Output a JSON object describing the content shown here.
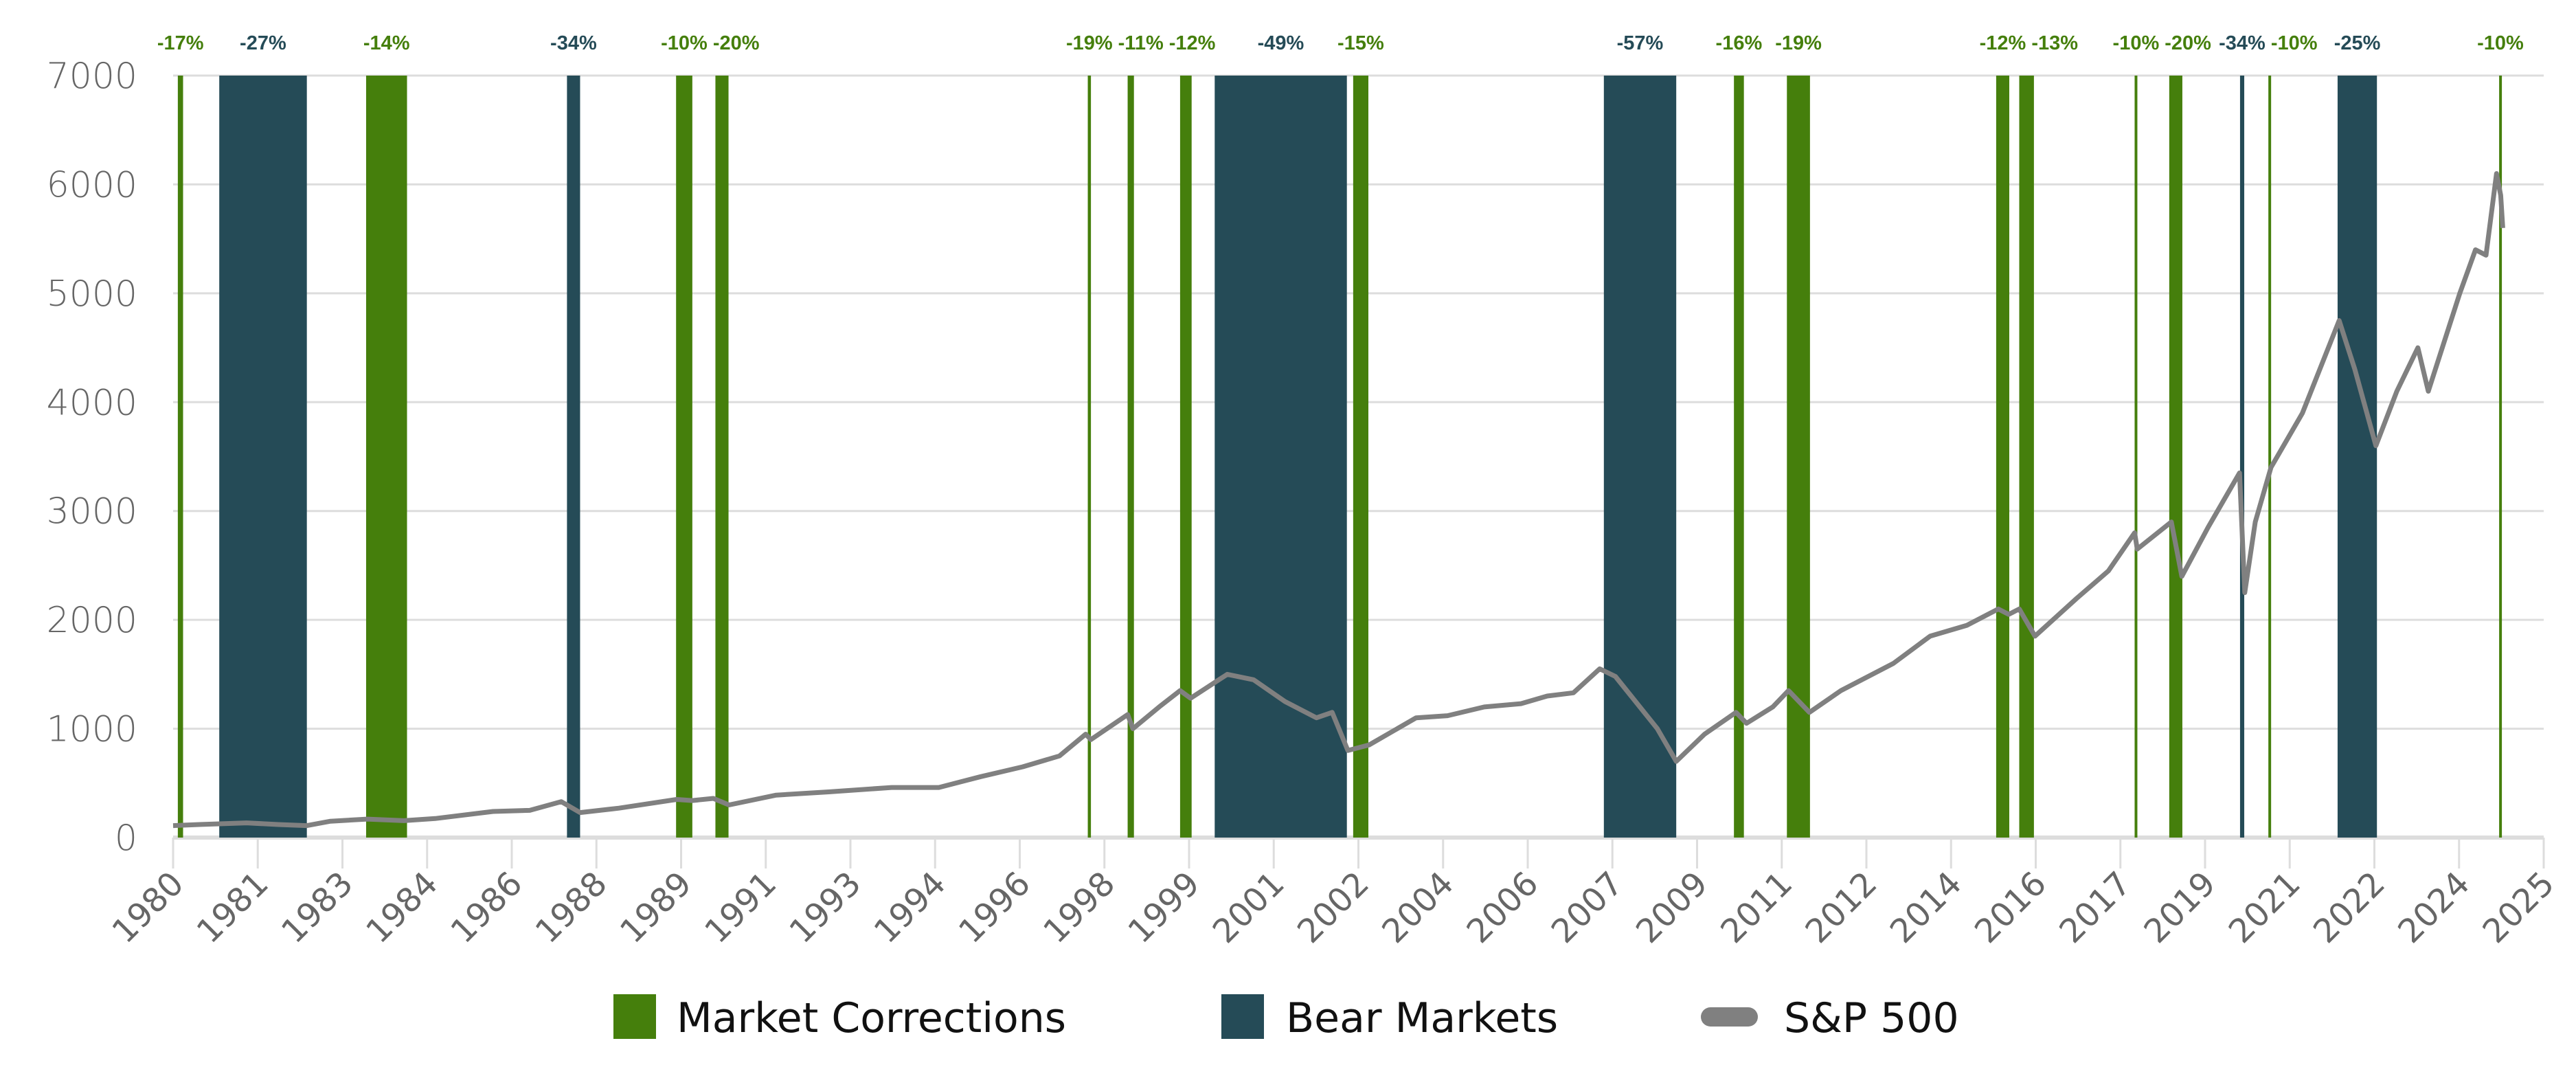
{
  "chart_data": {
    "type": "line",
    "title": "",
    "xlabel": "",
    "ylabel": "",
    "xlim": [
      1980,
      2025.2
    ],
    "ylim": [
      0,
      7000
    ],
    "grid": "horizontal",
    "legend_placement": "bottom",
    "y_ticks": [
      "0",
      "1000",
      "2000",
      "3000",
      "4000",
      "5000",
      "6000",
      "7000"
    ],
    "x_ticks": [
      "1980",
      "1981",
      "1983",
      "1984",
      "1986",
      "1988",
      "1989",
      "1991",
      "1993",
      "1994",
      "1996",
      "1998",
      "1999",
      "2001",
      "2002",
      "2004",
      "2006",
      "2007",
      "2009",
      "2011",
      "2012",
      "2014",
      "2016",
      "2017",
      "2019",
      "2021",
      "2022",
      "2024",
      "2025"
    ],
    "colors": {
      "correction": "#457f0c",
      "bear": "#254b57",
      "line": "#808080",
      "grid": "#dddddd"
    },
    "legend": [
      {
        "key": "correction",
        "label": "Market Corrections"
      },
      {
        "key": "bear",
        "label": "Bear Markets"
      },
      {
        "key": "line",
        "label": "S&P 500"
      }
    ],
    "events": [
      {
        "type": "correction",
        "start": 1980.09,
        "end": 1980.19,
        "label": "-17%"
      },
      {
        "type": "bear",
        "start": 1980.88,
        "end": 1982.55,
        "label": "-27%"
      },
      {
        "type": "correction",
        "start": 1983.68,
        "end": 1984.46,
        "label": "-14%"
      },
      {
        "type": "bear",
        "start": 1987.51,
        "end": 1987.76,
        "label": "-34%"
      },
      {
        "type": "correction",
        "start": 1989.59,
        "end": 1989.9,
        "label": "-10%"
      },
      {
        "type": "correction",
        "start": 1990.34,
        "end": 1990.59,
        "label": "-20%"
      },
      {
        "type": "correction",
        "start": 1997.44,
        "end": 1997.5,
        "label": "-19%"
      },
      {
        "type": "correction",
        "start": 1998.2,
        "end": 1998.32,
        "label": "-11%"
      },
      {
        "type": "correction",
        "start": 1999.2,
        "end": 1999.42,
        "label": "-12%"
      },
      {
        "type": "bear",
        "start": 1999.86,
        "end": 2002.38,
        "label": "-49%"
      },
      {
        "type": "correction",
        "start": 2002.5,
        "end": 2002.79,
        "label": "-15%"
      },
      {
        "type": "bear",
        "start": 2007.28,
        "end": 2008.66,
        "label": "-57%"
      },
      {
        "type": "correction",
        "start": 2009.76,
        "end": 2009.95,
        "label": "-16%"
      },
      {
        "type": "correction",
        "start": 2010.77,
        "end": 2011.21,
        "label": "-19%"
      },
      {
        "type": "correction",
        "start": 2014.76,
        "end": 2015.01,
        "label": "-12%"
      },
      {
        "type": "correction",
        "start": 2015.2,
        "end": 2015.48,
        "label": "-13%"
      },
      {
        "type": "correction",
        "start": 2017.4,
        "end": 2017.45,
        "label": "-10%"
      },
      {
        "type": "correction",
        "start": 2018.06,
        "end": 2018.31,
        "label": "-20%"
      },
      {
        "type": "bear",
        "start": 2019.41,
        "end": 2019.49,
        "label": "-34%"
      },
      {
        "type": "correction",
        "start": 2019.95,
        "end": 2020.0,
        "label": "-10%"
      },
      {
        "type": "bear",
        "start": 2021.27,
        "end": 2022.02,
        "label": "-25%"
      },
      {
        "type": "correction",
        "start": 2024.35,
        "end": 2024.4,
        "label": "-10%"
      }
    ],
    "series": [
      {
        "name": "S&P 500",
        "points": [
          [
            1980.0,
            110
          ],
          [
            1980.5,
            120
          ],
          [
            1981.4,
            135
          ],
          [
            1982.0,
            120
          ],
          [
            1982.55,
            110
          ],
          [
            1983.0,
            150
          ],
          [
            1983.7,
            170
          ],
          [
            1984.4,
            155
          ],
          [
            1985.0,
            175
          ],
          [
            1986.1,
            240
          ],
          [
            1986.8,
            250
          ],
          [
            1987.4,
            330
          ],
          [
            1987.76,
            230
          ],
          [
            1988.5,
            270
          ],
          [
            1989.6,
            350
          ],
          [
            1989.9,
            340
          ],
          [
            1990.3,
            360
          ],
          [
            1990.6,
            300
          ],
          [
            1991.5,
            390
          ],
          [
            1992.5,
            420
          ],
          [
            1993.7,
            460
          ],
          [
            1994.6,
            460
          ],
          [
            1995.4,
            560
          ],
          [
            1996.2,
            650
          ],
          [
            1996.9,
            750
          ],
          [
            1997.4,
            950
          ],
          [
            1997.5,
            900
          ],
          [
            1998.2,
            1130
          ],
          [
            1998.3,
            1000
          ],
          [
            1998.8,
            1200
          ],
          [
            1999.2,
            1350
          ],
          [
            1999.4,
            1280
          ],
          [
            2000.1,
            1500
          ],
          [
            2000.6,
            1450
          ],
          [
            2001.2,
            1250
          ],
          [
            2001.8,
            1100
          ],
          [
            2002.1,
            1150
          ],
          [
            2002.4,
            800
          ],
          [
            2002.8,
            850
          ],
          [
            2003.7,
            1100
          ],
          [
            2004.3,
            1120
          ],
          [
            2005.0,
            1200
          ],
          [
            2005.7,
            1230
          ],
          [
            2006.2,
            1300
          ],
          [
            2006.7,
            1330
          ],
          [
            2007.2,
            1550
          ],
          [
            2007.5,
            1480
          ],
          [
            2007.8,
            1300
          ],
          [
            2008.3,
            1000
          ],
          [
            2008.66,
            700
          ],
          [
            2009.2,
            950
          ],
          [
            2009.8,
            1150
          ],
          [
            2010.0,
            1050
          ],
          [
            2010.5,
            1200
          ],
          [
            2010.8,
            1350
          ],
          [
            2011.2,
            1150
          ],
          [
            2011.8,
            1350
          ],
          [
            2012.8,
            1600
          ],
          [
            2013.5,
            1850
          ],
          [
            2014.2,
            1950
          ],
          [
            2014.8,
            2100
          ],
          [
            2015.0,
            2050
          ],
          [
            2015.2,
            2100
          ],
          [
            2015.5,
            1850
          ],
          [
            2016.3,
            2200
          ],
          [
            2016.9,
            2450
          ],
          [
            2017.4,
            2800
          ],
          [
            2017.45,
            2650
          ],
          [
            2018.1,
            2900
          ],
          [
            2018.3,
            2400
          ],
          [
            2018.8,
            2850
          ],
          [
            2019.4,
            3350
          ],
          [
            2019.5,
            2250
          ],
          [
            2019.7,
            2900
          ],
          [
            2020.0,
            3400
          ],
          [
            2020.6,
            3900
          ],
          [
            2021.3,
            4750
          ],
          [
            2021.6,
            4300
          ],
          [
            2022.0,
            3600
          ],
          [
            2022.4,
            4100
          ],
          [
            2022.8,
            4500
          ],
          [
            2023.0,
            4100
          ],
          [
            2023.6,
            5000
          ],
          [
            2023.9,
            5400
          ],
          [
            2024.1,
            5350
          ],
          [
            2024.3,
            6100
          ],
          [
            2024.38,
            5900
          ],
          [
            2024.42,
            5600
          ]
        ]
      }
    ]
  }
}
